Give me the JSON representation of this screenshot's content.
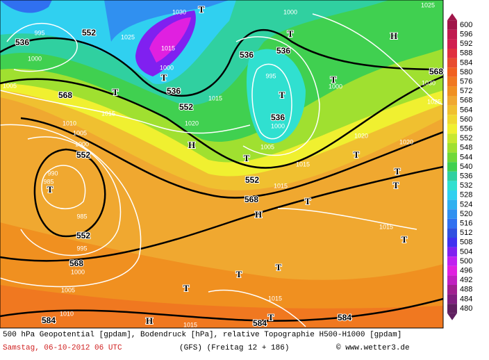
{
  "map": {
    "geopotential_labels": [
      "536",
      "552",
      "536",
      "536",
      "568",
      "568",
      "536",
      "552",
      "536",
      "552",
      "552",
      "568",
      "552",
      "568",
      "584",
      "584",
      "584"
    ],
    "pressure_labels": [
      "995",
      "1000",
      "1005",
      "1025",
      "1030",
      "1015",
      "1000",
      "1015",
      "1015",
      "1010",
      "1005",
      "1000",
      "990",
      "985",
      "985",
      "995",
      "1000",
      "1005",
      "1010",
      "1020",
      "1005",
      "1015",
      "1020",
      "1015",
      "1020",
      "1025",
      "1030",
      "1000",
      "995",
      "1000",
      "1015",
      "1015",
      "1015",
      "1000",
      "1025"
    ],
    "symbols": [
      "T",
      "T",
      "T",
      "T",
      "T",
      "T",
      "T",
      "T",
      "T",
      "T",
      "T",
      "T",
      "T",
      "T",
      "T",
      "T",
      "T",
      "H",
      "H",
      "H",
      "H"
    ]
  },
  "legend": {
    "values": [
      600,
      596,
      592,
      588,
      584,
      580,
      576,
      572,
      568,
      564,
      560,
      556,
      552,
      548,
      544,
      540,
      536,
      532,
      528,
      524,
      520,
      516,
      512,
      508,
      504,
      500,
      496,
      492,
      488,
      484,
      480
    ],
    "colors": [
      "#a0164a",
      "#c01c50",
      "#d02050",
      "#e03040",
      "#e84c30",
      "#f06020",
      "#f07820",
      "#f09020",
      "#f0a830",
      "#f0c030",
      "#f0d830",
      "#f0f030",
      "#c8e830",
      "#a0e030",
      "#70d838",
      "#40d050",
      "#30d0a0",
      "#30e0d0",
      "#30d0f0",
      "#30b0f0",
      "#3090f0",
      "#3070f0",
      "#3050e0",
      "#4030f0",
      "#8020f0",
      "#c020f0",
      "#e020e0",
      "#c020c0",
      "#a02090",
      "#802080",
      "#602060"
    ]
  },
  "footer": {
    "description": "500 hPa Geopotential [gpdam], Bodendruck [hPa], relative Topographie H500-H1000 [gpdam]",
    "date": "Samstag, 06-10-2012  06 UTC",
    "model": "(GFS)  (Freitag 12 + 186)",
    "source": "© www.wetter3.de"
  }
}
